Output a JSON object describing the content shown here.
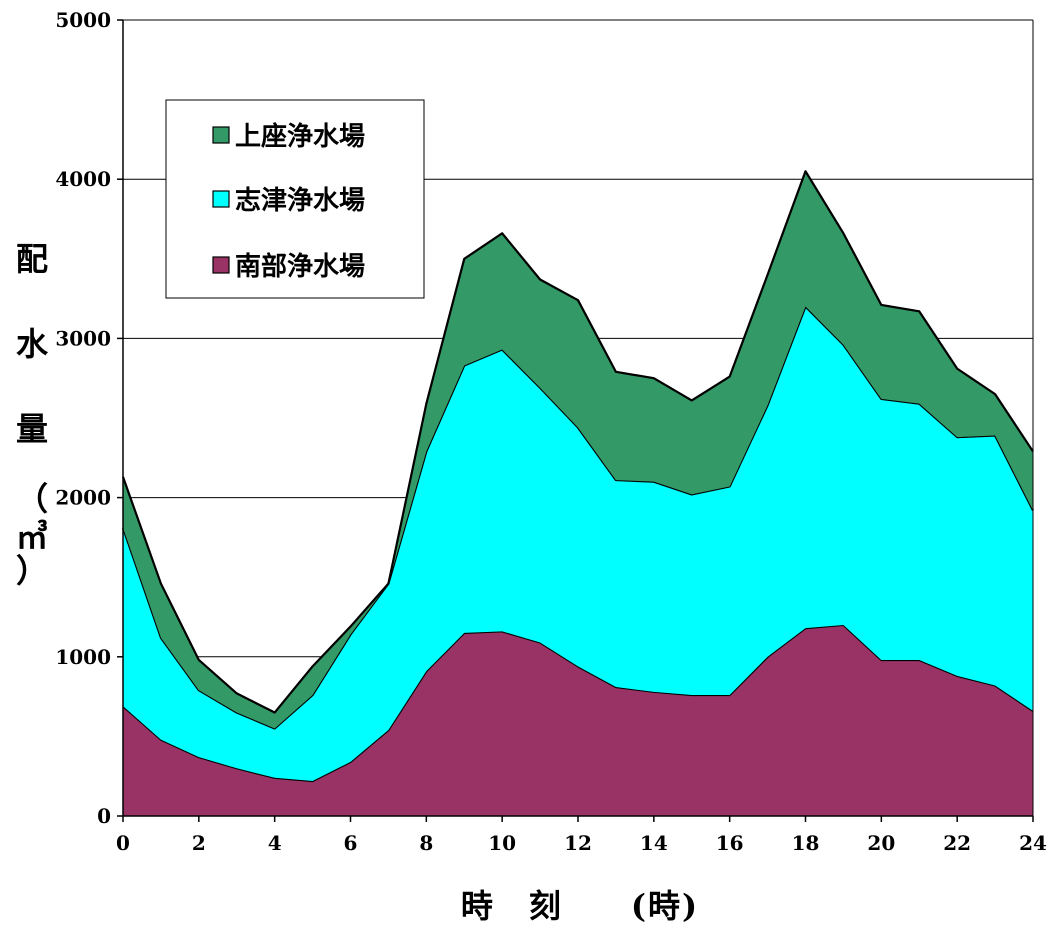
{
  "chart_data": {
    "type": "area",
    "stacked": true,
    "x": [
      0,
      1,
      2,
      3,
      4,
      5,
      6,
      7,
      8,
      9,
      10,
      11,
      12,
      13,
      14,
      15,
      16,
      17,
      18,
      19,
      20,
      21,
      22,
      23,
      24
    ],
    "xlim": [
      0,
      24
    ],
    "ylim": [
      0,
      5000
    ],
    "x_ticks": [
      0,
      2,
      4,
      6,
      8,
      10,
      12,
      14,
      16,
      18,
      20,
      22,
      24
    ],
    "y_ticks": [
      0,
      1000,
      2000,
      3000,
      4000,
      5000
    ],
    "grid": "horizontal",
    "xlabel": "時　刻　　(時)",
    "ylabel": [
      "配",
      "水",
      "量",
      "（",
      "㎥",
      "）"
    ],
    "legend_position": "top-left",
    "series": [
      {
        "name": "南部浄水場",
        "color": "#993366",
        "values": [
          690,
          480,
          370,
          300,
          240,
          220,
          340,
          540,
          910,
          1150,
          1160,
          1090,
          940,
          810,
          780,
          760,
          760,
          1000,
          1180,
          1200,
          980,
          980,
          880,
          820,
          660
        ]
      },
      {
        "name": "志津浄水場",
        "color": "#00ffff",
        "values": [
          1120,
          640,
          420,
          350,
          310,
          540,
          800,
          920,
          1380,
          1680,
          1770,
          1600,
          1500,
          1300,
          1320,
          1260,
          1310,
          1580,
          2020,
          1760,
          1640,
          1610,
          1500,
          1570,
          1260
        ]
      },
      {
        "name": "上座浄水場",
        "color": "#339966",
        "values": [
          320,
          340,
          190,
          120,
          100,
          180,
          50,
          0,
          300,
          670,
          730,
          680,
          800,
          680,
          650,
          590,
          690,
          820,
          850,
          700,
          590,
          580,
          430,
          260,
          370
        ]
      }
    ],
    "legend_order": [
      "上座浄水場",
      "志津浄水場",
      "南部浄水場"
    ]
  }
}
